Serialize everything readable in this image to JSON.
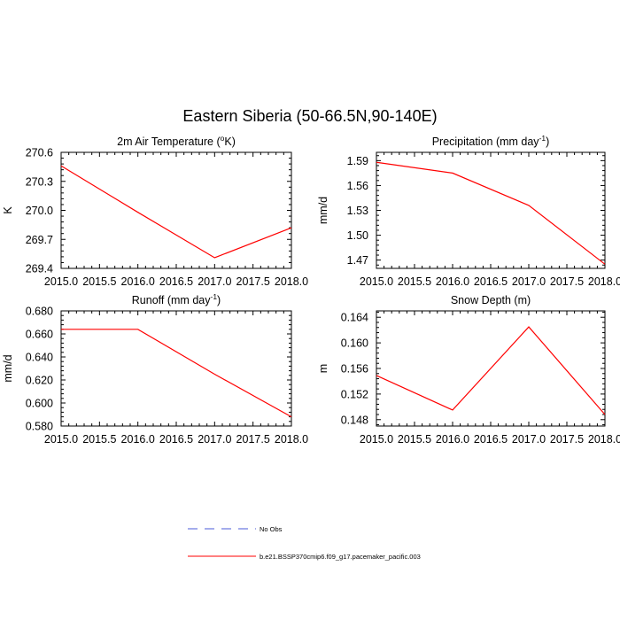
{
  "figure": {
    "title": "Eastern Siberia (50-66.5N,90-140E)"
  },
  "legend": {
    "items": [
      {
        "label": "No Obs",
        "color": "#4a5ad8",
        "dash": true
      },
      {
        "label": "b.e21.BSSP370cmip6.f09_g17.pacemaker_pacific.003",
        "color": "#ff0000",
        "dash": false
      }
    ]
  },
  "chart_data": [
    {
      "type": "line",
      "title_main": "2m Air Temperature (",
      "title_sup": "o",
      "title_tail": "K)",
      "ylabel": "K",
      "xlim": [
        2015.0,
        2018.0
      ],
      "ylim": [
        269.4,
        270.6
      ],
      "xticks": [
        "2015.0",
        "2015.5",
        "2016.0",
        "2016.5",
        "2017.0",
        "2017.5",
        "2018.0"
      ],
      "yticks": [
        "269.4",
        "269.7",
        "270.0",
        "270.3",
        "270.6"
      ],
      "series": [
        {
          "color": "#ff0000",
          "x": [
            2015,
            2016,
            2017,
            2018
          ],
          "y": [
            270.46,
            269.98,
            269.51,
            269.82
          ]
        }
      ]
    },
    {
      "type": "line",
      "title_main": "Precipitation (mm day",
      "title_sup": "-1",
      "title_tail": ")",
      "ylabel": "mm/d",
      "xlim": [
        2015.0,
        2018.0
      ],
      "ylim": [
        1.46,
        1.6
      ],
      "xticks": [
        "2015.0",
        "2015.5",
        "2016.0",
        "2016.5",
        "2017.0",
        "2017.5",
        "2018.0"
      ],
      "yticks": [
        "1.47",
        "1.50",
        "1.53",
        "1.56",
        "1.59"
      ],
      "series": [
        {
          "color": "#ff0000",
          "x": [
            2015,
            2016,
            2017,
            2018
          ],
          "y": [
            1.588,
            1.575,
            1.536,
            1.465
          ]
        }
      ]
    },
    {
      "type": "line",
      "title_main": "Runoff (mm day",
      "title_sup": "-1",
      "title_tail": ")",
      "ylabel": "mm/d",
      "xlim": [
        2015.0,
        2018.0
      ],
      "ylim": [
        0.58,
        0.68
      ],
      "xticks": [
        "2015.0",
        "2015.5",
        "2016.0",
        "2016.5",
        "2017.0",
        "2017.5",
        "2018.0"
      ],
      "yticks": [
        "0.580",
        "0.600",
        "0.620",
        "0.640",
        "0.660",
        "0.680"
      ],
      "series": [
        {
          "color": "#ff0000",
          "x": [
            2015,
            2016,
            2017,
            2018
          ],
          "y": [
            0.664,
            0.664,
            0.625,
            0.588
          ]
        }
      ]
    },
    {
      "type": "line",
      "title_main": "Snow Depth (m)",
      "title_sup": "",
      "title_tail": "",
      "ylabel": "m",
      "xlim": [
        2015.0,
        2018.0
      ],
      "ylim": [
        0.147,
        0.165
      ],
      "xticks": [
        "2015.0",
        "2015.5",
        "2016.0",
        "2016.5",
        "2017.0",
        "2017.5",
        "2018.0"
      ],
      "yticks": [
        "0.148",
        "0.152",
        "0.156",
        "0.160",
        "0.164"
      ],
      "series": [
        {
          "color": "#ff0000",
          "x": [
            2015,
            2016,
            2017,
            2018
          ],
          "y": [
            0.1549,
            0.1495,
            0.1625,
            0.1488
          ]
        }
      ]
    }
  ]
}
